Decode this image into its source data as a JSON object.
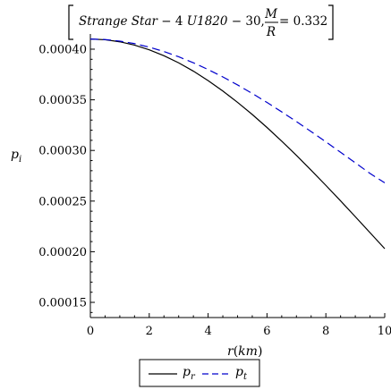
{
  "chart_data": {
    "type": "line",
    "title": {
      "prefix": "Strange Star",
      "dash": " − 4 ",
      "source": "U1820",
      "suffix": " − 30, ",
      "frac_num": "M",
      "frac_den": "R",
      "value": " = 0.332"
    },
    "xlabel": {
      "main": "r",
      "paren_open": "(",
      "unit": "km",
      "paren_close": ")"
    },
    "ylabel": {
      "main": "p",
      "sub": "i"
    },
    "xlim": [
      0,
      10
    ],
    "ylim": [
      0.000135,
      0.000415
    ],
    "x_ticks": [
      0,
      2,
      4,
      6,
      8,
      10
    ],
    "x_tick_labels": [
      "0",
      "2",
      "4",
      "6",
      "8",
      "10"
    ],
    "y_ticks": [
      0.00015,
      0.0002,
      0.00025,
      0.0003,
      0.00035,
      0.0004
    ],
    "y_tick_labels": [
      "0.00015",
      "0.00020",
      "0.00025",
      "0.00030",
      "0.00035",
      "0.00040"
    ],
    "grid": false,
    "legend_position": "bottom-center",
    "series": [
      {
        "name": "p_r",
        "label_main": "p",
        "label_sub": "r",
        "color": "#000000",
        "dash": "solid",
        "x": [
          0,
          0.5,
          1,
          1.5,
          2,
          2.5,
          3,
          3.5,
          4,
          4.5,
          5,
          5.5,
          6,
          6.5,
          7,
          7.5,
          8,
          8.5,
          9,
          9.5,
          10
        ],
        "y": [
          0.00041,
          0.0004093,
          0.0004073,
          0.000404,
          0.0003994,
          0.0003935,
          0.0003865,
          0.0003783,
          0.000369,
          0.0003587,
          0.0003475,
          0.0003355,
          0.0003227,
          0.0003092,
          0.0002951,
          0.0002805,
          0.0002655,
          0.0002502,
          0.0002346,
          0.0002188,
          0.000203
        ]
      },
      {
        "name": "p_t",
        "label_main": "p",
        "label_sub": "t",
        "color": "#0000cc",
        "dash": "dashed",
        "x": [
          0,
          0.5,
          1,
          1.5,
          2,
          2.5,
          3,
          3.5,
          4,
          4.5,
          5,
          5.5,
          6,
          6.5,
          7,
          7.5,
          8,
          8.5,
          9,
          9.5,
          10
        ],
        "y": [
          0.00041,
          0.0004095,
          0.000408,
          0.0004055,
          0.000402,
          0.0003977,
          0.0003925,
          0.0003866,
          0.0003799,
          0.0003726,
          0.0003647,
          0.0003563,
          0.0003474,
          0.0003381,
          0.0003285,
          0.0003186,
          0.0003085,
          0.0002982,
          0.0002878,
          0.0002773,
          0.000268
        ]
      }
    ]
  }
}
